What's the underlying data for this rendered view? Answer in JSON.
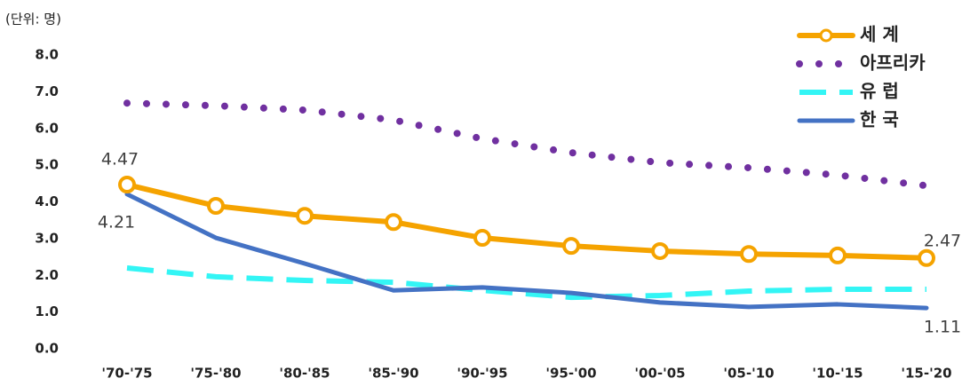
{
  "chart_data": {
    "type": "line",
    "y_label": "(단위: 명)",
    "categories": [
      "'70-'75",
      "'75-'80",
      "'80-'85",
      "'85-'90",
      "'90-'95",
      "'95-'00",
      "'00-'05",
      "'05-'10",
      "'10-'15",
      "'15-'20"
    ],
    "series": [
      {
        "name": "세 계",
        "color": "#f5a300",
        "values": [
          4.47,
          3.89,
          3.62,
          3.45,
          3.02,
          2.8,
          2.66,
          2.58,
          2.54,
          2.47
        ]
      },
      {
        "name": "아프리카",
        "color": "#7030a0",
        "values": [
          6.69,
          6.62,
          6.5,
          6.23,
          5.72,
          5.34,
          5.07,
          4.93,
          4.73,
          4.44
        ]
      },
      {
        "name": "유 럽",
        "color": "#33f5f5",
        "values": [
          2.2,
          1.96,
          1.86,
          1.81,
          1.59,
          1.4,
          1.45,
          1.57,
          1.62,
          1.62
        ]
      },
      {
        "name": "한 국",
        "color": "#4472c4",
        "values": [
          4.21,
          3.02,
          2.32,
          1.59,
          1.67,
          1.52,
          1.26,
          1.14,
          1.21,
          1.11
        ]
      }
    ],
    "ylim": [
      0,
      8
    ],
    "yticks": [
      {
        "value": 0,
        "label": "0.0"
      },
      {
        "value": 1,
        "label": "1.0"
      },
      {
        "value": 2,
        "label": "2.0"
      },
      {
        "value": 3,
        "label": "3.0"
      },
      {
        "value": 4,
        "label": "4.0"
      },
      {
        "value": 5,
        "label": "5.0"
      },
      {
        "value": 6,
        "label": "6.0"
      },
      {
        "value": 7,
        "label": "7.0"
      },
      {
        "value": 8,
        "label": "8.0"
      }
    ],
    "grid": false,
    "legend": "top-right"
  }
}
